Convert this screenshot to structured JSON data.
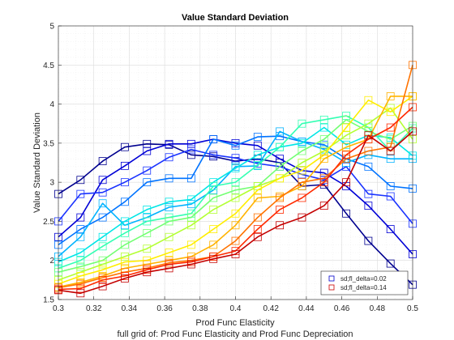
{
  "chart_data": {
    "type": "line",
    "title": "Value Standard Deviation",
    "xlabel": "Prod Func Elasticity",
    "ylabel": "Value Standard Deviation",
    "footer": "full grid of: Prod Func Elasticity and Prod Func Depreciation",
    "xlim": [
      0.3,
      0.5
    ],
    "ylim": [
      1.5,
      5
    ],
    "xticks": [
      "0.3",
      "0.32",
      "0.34",
      "0.36",
      "0.38",
      "0.4",
      "0.42",
      "0.44",
      "0.46",
      "0.48",
      "0.5"
    ],
    "yticks": [
      "1.5",
      "2",
      "2.5",
      "3",
      "3.5",
      "4",
      "4.5",
      "5"
    ],
    "grid": true,
    "marker": "square",
    "legend": {
      "placement": "bottom-right",
      "entries": [
        {
          "label": "sd;fl_delta=0.02",
          "color": "#0000cc"
        },
        {
          "label": "sd;fl_delta=0.14",
          "color": "#cc0000"
        }
      ]
    },
    "x": [
      0.3,
      0.3125,
      0.325,
      0.3375,
      0.35,
      0.3625,
      0.375,
      0.3875,
      0.4,
      0.4125,
      0.425,
      0.4375,
      0.45,
      0.4625,
      0.475,
      0.4875,
      0.5
    ],
    "series": [
      {
        "color": "#00008f",
        "values": [
          2.85,
          3.03,
          3.27,
          3.45,
          3.49,
          3.48,
          3.35,
          3.33,
          3.27,
          3.3,
          3.25,
          2.95,
          2.97,
          2.6,
          2.25,
          1.96,
          1.69
        ]
      },
      {
        "color": "#0000d6",
        "values": [
          2.3,
          2.55,
          3.03,
          3.21,
          3.4,
          3.49,
          3.49,
          3.55,
          3.5,
          3.47,
          3.3,
          3.15,
          3.12,
          2.95,
          2.7,
          2.4,
          2.08
        ]
      },
      {
        "color": "#1a33ff",
        "values": [
          2.5,
          2.85,
          2.87,
          3.0,
          3.15,
          3.32,
          3.42,
          3.35,
          3.31,
          3.24,
          3.2,
          3.1,
          3.03,
          3.2,
          2.85,
          2.82,
          2.47
        ]
      },
      {
        "color": "#0073ff",
        "values": [
          2.2,
          2.4,
          2.55,
          2.75,
          3.0,
          3.05,
          3.05,
          3.55,
          3.47,
          3.58,
          3.59,
          3.52,
          3.48,
          3.3,
          3.2,
          2.95,
          2.92
        ]
      },
      {
        "color": "#00b3ff",
        "values": [
          2.05,
          2.3,
          2.73,
          2.45,
          2.55,
          2.68,
          2.72,
          2.9,
          3.2,
          3.21,
          3.65,
          3.52,
          3.42,
          3.25,
          3.35,
          3.3,
          3.3
        ]
      },
      {
        "color": "#00e6e6",
        "values": [
          1.98,
          2.1,
          2.3,
          2.5,
          2.65,
          2.75,
          2.78,
          3.0,
          3.18,
          3.35,
          3.45,
          3.5,
          3.7,
          3.48,
          3.6,
          3.57,
          3.34
        ]
      },
      {
        "color": "#33ffb3",
        "values": [
          1.9,
          2.0,
          2.18,
          2.35,
          2.5,
          2.55,
          2.6,
          2.95,
          3.0,
          3.22,
          3.45,
          3.75,
          3.8,
          3.85,
          3.7,
          3.4,
          3.69
        ]
      },
      {
        "color": "#73ff73",
        "values": [
          1.85,
          1.92,
          2.0,
          2.2,
          2.35,
          2.5,
          2.55,
          2.8,
          2.9,
          2.95,
          3.2,
          3.4,
          3.55,
          3.8,
          3.65,
          3.55,
          3.72
        ]
      },
      {
        "color": "#b3ff33",
        "values": [
          1.75,
          1.85,
          1.95,
          2.05,
          2.15,
          2.3,
          2.45,
          2.65,
          2.8,
          2.95,
          3.05,
          3.25,
          3.4,
          3.6,
          3.75,
          3.95,
          3.55
        ]
      },
      {
        "color": "#ffee00",
        "values": [
          1.7,
          1.8,
          1.88,
          1.98,
          2.0,
          2.1,
          2.2,
          2.4,
          2.6,
          2.9,
          3.05,
          3.15,
          3.35,
          3.7,
          4.05,
          3.9,
          4.1
        ]
      },
      {
        "color": "#ffb300",
        "values": [
          1.66,
          1.72,
          1.8,
          1.9,
          1.95,
          2.0,
          2.05,
          2.2,
          2.45,
          2.8,
          2.82,
          2.95,
          3.3,
          3.45,
          3.55,
          4.1,
          4.1
        ]
      },
      {
        "color": "#ff7300",
        "values": [
          1.65,
          1.7,
          1.78,
          1.85,
          1.9,
          1.97,
          2.0,
          2.05,
          2.25,
          2.55,
          2.8,
          3.0,
          3.05,
          3.3,
          3.4,
          3.45,
          4.5
        ]
      },
      {
        "color": "#ff2a00",
        "values": [
          1.63,
          1.64,
          1.75,
          1.8,
          1.88,
          1.95,
          1.98,
          2.05,
          2.12,
          2.4,
          2.65,
          2.8,
          3.0,
          3.35,
          3.55,
          3.7,
          3.96
        ]
      },
      {
        "color": "#c40000",
        "values": [
          1.62,
          1.58,
          1.67,
          1.77,
          1.85,
          1.9,
          1.95,
          2.02,
          2.08,
          2.3,
          2.45,
          2.55,
          2.7,
          3.0,
          3.6,
          3.4,
          3.65
        ]
      }
    ]
  }
}
